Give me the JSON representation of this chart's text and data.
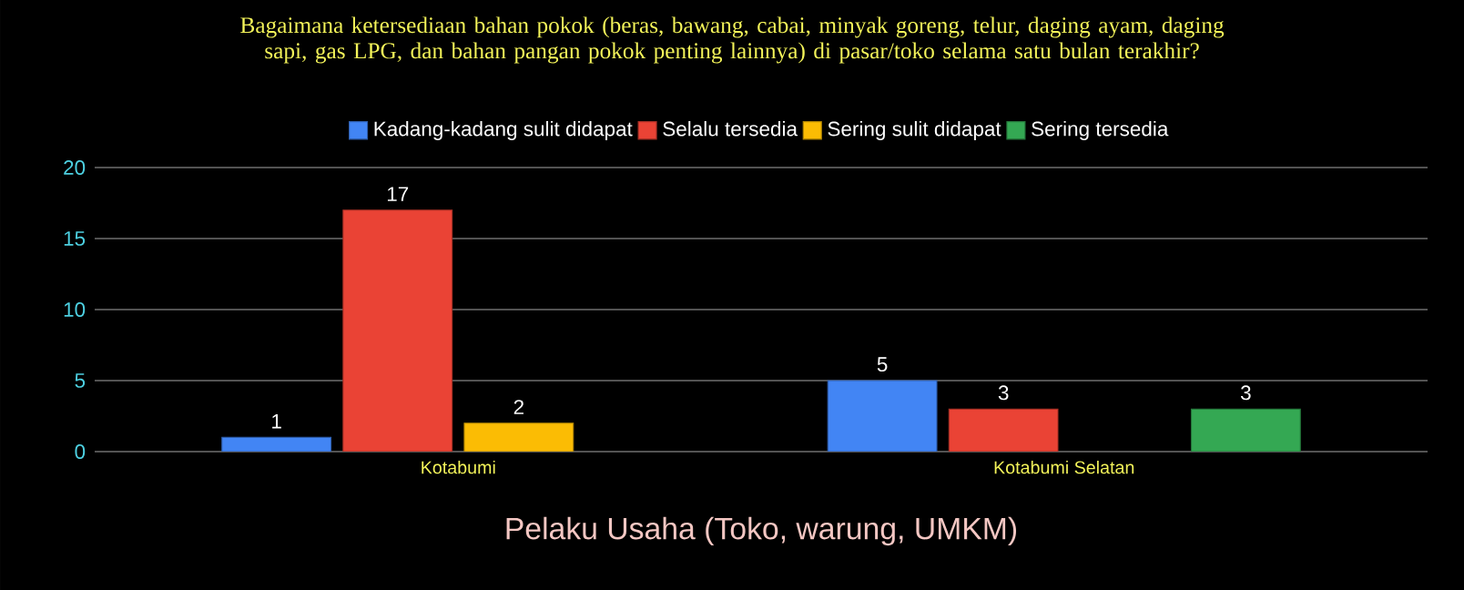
{
  "chart_data": {
    "type": "bar",
    "title": "Bagaimana ketersediaan bahan pokok (beras, bawang, cabai, minyak goreng, telur, daging ayam, daging sapi, gas LPG, dan bahan pangan pokok penting lainnya) di pasar/toko selama  satu bulan terakhir?",
    "xlabel": "Pelaku Usaha (Toko, warung, UMKM)",
    "categories": [
      "Kotabumi",
      "Kotabumi Selatan"
    ],
    "series": [
      {
        "name": "Kadang-kadang sulit didapat",
        "color": "#4285f4",
        "values": [
          1,
          5
        ]
      },
      {
        "name": "Selalu tersedia",
        "color": "#ea4335",
        "values": [
          17,
          3
        ]
      },
      {
        "name": "Sering sulit didapat",
        "color": "#fbbc04",
        "values": [
          2,
          null
        ]
      },
      {
        "name": "Sering tersedia",
        "color": "#34a853",
        "values": [
          null,
          3
        ]
      }
    ],
    "ylim": [
      0,
      20
    ],
    "yticks": [
      0,
      5,
      10,
      15,
      20
    ],
    "grid": "y",
    "legend": "top",
    "data_labels": true
  }
}
